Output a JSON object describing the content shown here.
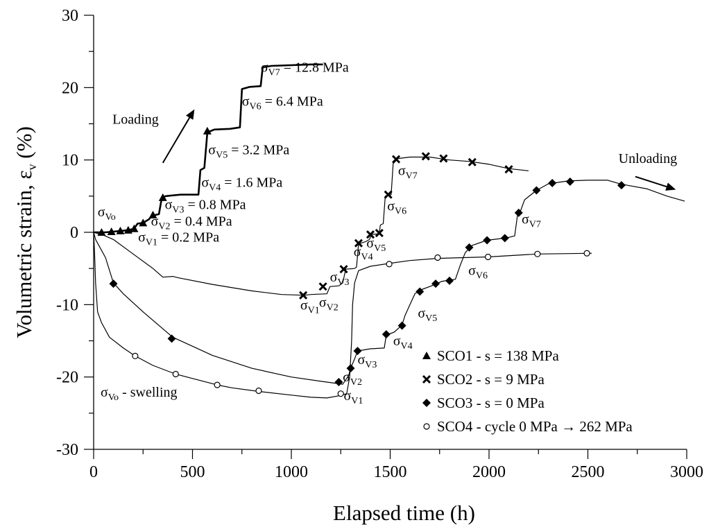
{
  "chart_data": {
    "type": "line",
    "xlabel": "Elapsed time (h)",
    "ylabel": "Volumetric strain, ε",
    "ylabel_sub": "v",
    "ylabel_unit": " (%)",
    "xlim": [
      0,
      3000
    ],
    "ylim": [
      -30,
      30
    ],
    "xticks": [
      0,
      500,
      1000,
      1500,
      2000,
      2500,
      3000
    ],
    "yticks": [
      -30,
      -20,
      -10,
      0,
      10,
      20,
      30
    ],
    "grid": false,
    "legend_position": "bottom-right",
    "series": [
      {
        "name": "SCO1 - s = 138 MPa",
        "marker": "triangle",
        "line": [
          [
            0,
            0
          ],
          [
            60,
            0
          ],
          [
            100,
            0.1
          ],
          [
            140,
            0.2
          ],
          [
            175,
            0.3
          ],
          [
            205,
            0.5
          ],
          [
            222,
            1.2
          ],
          [
            250,
            1.3
          ],
          [
            280,
            1.8
          ],
          [
            295,
            2.3
          ],
          [
            330,
            2.5
          ],
          [
            345,
            4.8
          ],
          [
            365,
            5.0
          ],
          [
            440,
            5.2
          ],
          [
            530,
            5.2
          ],
          [
            540,
            8.6
          ],
          [
            560,
            8.9
          ],
          [
            575,
            13.8
          ],
          [
            610,
            14.2
          ],
          [
            690,
            14.3
          ],
          [
            740,
            14.5
          ],
          [
            750,
            19.8
          ],
          [
            790,
            20.1
          ],
          [
            845,
            20.2
          ],
          [
            855,
            22.8
          ],
          [
            900,
            23.0
          ],
          [
            1000,
            23.1
          ],
          [
            1100,
            23.2
          ],
          [
            1160,
            23.2
          ]
        ],
        "markers": [
          [
            40,
            0
          ],
          [
            90,
            0.1
          ],
          [
            135,
            0.2
          ],
          [
            175,
            0.3
          ],
          [
            205,
            0.5
          ],
          [
            250,
            1.3
          ],
          [
            300,
            2.4
          ],
          [
            350,
            4.8
          ],
          [
            575,
            14.0
          ]
        ]
      },
      {
        "name": "SCO2 - s = 9 MPa",
        "marker": "x",
        "line": [
          [
            0,
            0
          ],
          [
            50,
            -0.4
          ],
          [
            100,
            -1
          ],
          [
            200,
            -3
          ],
          [
            300,
            -5
          ],
          [
            350,
            -6.2
          ],
          [
            400,
            -6.1
          ],
          [
            430,
            -6.3
          ],
          [
            600,
            -7.2
          ],
          [
            800,
            -8.1
          ],
          [
            950,
            -8.6
          ],
          [
            1065,
            -8.7
          ],
          [
            1100,
            -8.6
          ],
          [
            1180,
            -8.5
          ],
          [
            1195,
            -7.5
          ],
          [
            1240,
            -7.4
          ],
          [
            1260,
            -7.0
          ],
          [
            1275,
            -5.1
          ],
          [
            1320,
            -5.0
          ],
          [
            1330,
            -4.8
          ],
          [
            1340,
            -1.6
          ],
          [
            1375,
            -1.3
          ],
          [
            1395,
            -1.0
          ],
          [
            1405,
            -0.3
          ],
          [
            1445,
            -0.2
          ],
          [
            1450,
            1.0
          ],
          [
            1465,
            1.2
          ],
          [
            1475,
            5.0
          ],
          [
            1505,
            5.2
          ],
          [
            1515,
            9.5
          ],
          [
            1540,
            10.2
          ],
          [
            1600,
            10.4
          ],
          [
            1700,
            10.4
          ],
          [
            1800,
            10.0
          ],
          [
            1900,
            9.8
          ],
          [
            2000,
            9.4
          ],
          [
            2100,
            8.8
          ],
          [
            2200,
            8.5
          ]
        ],
        "markers": [
          [
            1060,
            -8.7
          ],
          [
            1160,
            -7.5
          ],
          [
            1265,
            -5.1
          ],
          [
            1340,
            -1.5
          ],
          [
            1400,
            -0.3
          ],
          [
            1445,
            -0.1
          ],
          [
            1490,
            5.2
          ],
          [
            1530,
            10.1
          ],
          [
            1680,
            10.5
          ],
          [
            1770,
            10.2
          ],
          [
            1915,
            9.7
          ],
          [
            2100,
            8.7
          ]
        ]
      },
      {
        "name": "SCO3 - s = 0 MPa",
        "marker": "diamond",
        "line": [
          [
            0,
            0
          ],
          [
            10,
            -1
          ],
          [
            30,
            -2
          ],
          [
            60,
            -3.5
          ],
          [
            100,
            -7
          ],
          [
            150,
            -8.5
          ],
          [
            250,
            -11
          ],
          [
            400,
            -14.5
          ],
          [
            600,
            -17
          ],
          [
            800,
            -18.8
          ],
          [
            1000,
            -20
          ],
          [
            1150,
            -20.6
          ],
          [
            1260,
            -21
          ],
          [
            1290,
            -19.8
          ],
          [
            1300,
            -18.8
          ],
          [
            1320,
            -17.5
          ],
          [
            1335,
            -16.4
          ],
          [
            1400,
            -16.1
          ],
          [
            1470,
            -16.0
          ],
          [
            1480,
            -14.2
          ],
          [
            1520,
            -13.8
          ],
          [
            1545,
            -13.2
          ],
          [
            1560,
            -12.8
          ],
          [
            1575,
            -11.5
          ],
          [
            1600,
            -10.0
          ],
          [
            1625,
            -8.5
          ],
          [
            1650,
            -8.0
          ],
          [
            1710,
            -7.4
          ],
          [
            1760,
            -6.8
          ],
          [
            1800,
            -6.6
          ],
          [
            1830,
            -6.5
          ],
          [
            1855,
            -4.5
          ],
          [
            1880,
            -2.8
          ],
          [
            1915,
            -1.8
          ],
          [
            1990,
            -1.1
          ],
          [
            2050,
            -0.9
          ],
          [
            2100,
            -0.7
          ],
          [
            2130,
            -0.5
          ],
          [
            2145,
            2.6
          ],
          [
            2160,
            3.0
          ],
          [
            2180,
            4.5
          ],
          [
            2240,
            5.8
          ],
          [
            2300,
            6.7
          ],
          [
            2400,
            7.1
          ],
          [
            2500,
            7.2
          ],
          [
            2600,
            7.2
          ],
          [
            2650,
            6.8
          ],
          [
            2700,
            6.5
          ],
          [
            2800,
            6.0
          ],
          [
            2900,
            5.0
          ],
          [
            2990,
            4.3
          ]
        ],
        "markers": [
          [
            100,
            -7.1
          ],
          [
            395,
            -14.7
          ],
          [
            1240,
            -20.7
          ],
          [
            1300,
            -18.8
          ],
          [
            1335,
            -16.4
          ],
          [
            1480,
            -14.1
          ],
          [
            1560,
            -12.9
          ],
          [
            1650,
            -8.2
          ],
          [
            1730,
            -7.1
          ],
          [
            1800,
            -6.7
          ],
          [
            1900,
            -2.1
          ],
          [
            1990,
            -1.1
          ],
          [
            2080,
            -0.8
          ],
          [
            2150,
            2.7
          ],
          [
            2240,
            5.8
          ],
          [
            2320,
            6.8
          ],
          [
            2410,
            7.0
          ],
          [
            2670,
            6.5
          ]
        ]
      },
      {
        "name": "SCO4 - cycle 0 MPa → 262 MPa",
        "marker": "open-circle",
        "line": [
          [
            0,
            0
          ],
          [
            5,
            -3
          ],
          [
            10,
            -7
          ],
          [
            20,
            -11
          ],
          [
            40,
            -12.5
          ],
          [
            80,
            -14.5
          ],
          [
            150,
            -16
          ],
          [
            210,
            -17.1
          ],
          [
            300,
            -18.4
          ],
          [
            415,
            -19.6
          ],
          [
            500,
            -20.2
          ],
          [
            625,
            -21.1
          ],
          [
            700,
            -21.5
          ],
          [
            835,
            -22.0
          ],
          [
            1000,
            -22.5
          ],
          [
            1100,
            -22.8
          ],
          [
            1180,
            -22.9
          ],
          [
            1240,
            -22.6
          ],
          [
            1280,
            -22.3
          ],
          [
            1295,
            -20
          ],
          [
            1305,
            -15
          ],
          [
            1310,
            -10
          ],
          [
            1320,
            -7
          ],
          [
            1340,
            -5.3
          ],
          [
            1400,
            -4.7
          ],
          [
            1495,
            -4.3
          ],
          [
            1600,
            -3.9
          ],
          [
            1740,
            -3.6
          ],
          [
            1995,
            -3.4
          ],
          [
            2245,
            -3.0
          ],
          [
            2500,
            -2.9
          ],
          [
            2520,
            -2.9
          ]
        ],
        "markers": [
          [
            210,
            -17.1
          ],
          [
            415,
            -19.6
          ],
          [
            625,
            -21.1
          ],
          [
            835,
            -21.9
          ],
          [
            1250,
            -22.3
          ],
          [
            1495,
            -4.4
          ],
          [
            1740,
            -3.5
          ],
          [
            1995,
            -3.4
          ],
          [
            2245,
            -3.0
          ],
          [
            2495,
            -2.9
          ]
        ]
      }
    ],
    "legend": [
      {
        "marker": "triangle",
        "text": "SCO1 - s = 138 MPa"
      },
      {
        "marker": "x",
        "text": "SCO2 - s = 9 MPa"
      },
      {
        "marker": "diamond",
        "text": "SCO3 - s = 0 MPa"
      },
      {
        "marker": "open-circle",
        "text": "SCO4 - cycle 0 MPa → 262 MPa"
      }
    ],
    "annotations": [
      {
        "x": 845,
        "y": 22.2,
        "parts": [
          [
            "σ",
            ""
          ],
          [
            "V7",
            "sub"
          ],
          [
            " = 12.8 MPa",
            ""
          ]
        ]
      },
      {
        "x": 750,
        "y": 17.5,
        "parts": [
          [
            "σ",
            ""
          ],
          [
            "V6",
            "sub"
          ],
          [
            " = 6.4 MPa",
            ""
          ]
        ]
      },
      {
        "x": 580,
        "y": 10.8,
        "parts": [
          [
            "σ",
            ""
          ],
          [
            "V5",
            "sub"
          ],
          [
            " = 3.2 MPa",
            ""
          ]
        ]
      },
      {
        "x": 545,
        "y": 6.3,
        "parts": [
          [
            "σ",
            ""
          ],
          [
            "V4",
            "sub"
          ],
          [
            " = 1.6 MPa",
            ""
          ]
        ]
      },
      {
        "x": 360,
        "y": 3.2,
        "parts": [
          [
            "σ",
            ""
          ],
          [
            "V3",
            "sub"
          ],
          [
            " = 0.8 MPa",
            ""
          ]
        ]
      },
      {
        "x": 290,
        "y": 0.9,
        "parts": [
          [
            "σ",
            ""
          ],
          [
            "V2",
            "sub"
          ],
          [
            " = 0.4 MPa",
            ""
          ]
        ]
      },
      {
        "x": 225,
        "y": -1.3,
        "parts": [
          [
            "σ",
            ""
          ],
          [
            "V1",
            "sub"
          ],
          [
            " = 0.2 MPa",
            ""
          ]
        ]
      },
      {
        "x": 20,
        "y": 2.2,
        "parts": [
          [
            "σ",
            ""
          ],
          [
            "Vo",
            "sub"
          ]
        ]
      },
      {
        "x": 35,
        "y": -22.7,
        "parts": [
          [
            "σ",
            ""
          ],
          [
            "Vo",
            "sub"
          ],
          [
            " - swelling",
            ""
          ]
        ]
      },
      {
        "x": 1045,
        "y": -10.7,
        "parts": [
          [
            "σ",
            ""
          ],
          [
            "V1",
            "sub"
          ]
        ]
      },
      {
        "x": 1140,
        "y": -10.3,
        "parts": [
          [
            "σ",
            ""
          ],
          [
            "V2",
            "sub"
          ]
        ]
      },
      {
        "x": 1195,
        "y": -6.8,
        "parts": [
          [
            "σ",
            ""
          ],
          [
            "V3",
            "sub"
          ]
        ]
      },
      {
        "x": 1315,
        "y": -3.3,
        "parts": [
          [
            "σ",
            ""
          ],
          [
            "V4",
            "sub"
          ]
        ]
      },
      {
        "x": 1380,
        "y": -2.1,
        "parts": [
          [
            "σ",
            ""
          ],
          [
            "V5",
            "sub"
          ]
        ]
      },
      {
        "x": 1485,
        "y": 3.0,
        "parts": [
          [
            "σ",
            ""
          ],
          [
            "V6",
            "sub"
          ]
        ]
      },
      {
        "x": 1540,
        "y": 7.9,
        "parts": [
          [
            "σ",
            ""
          ],
          [
            "V7",
            "sub"
          ]
        ]
      },
      {
        "x": 1265,
        "y": -23.2,
        "parts": [
          [
            "σ",
            ""
          ],
          [
            "V1",
            "sub"
          ]
        ]
      },
      {
        "x": 1260,
        "y": -20.6,
        "parts": [
          [
            "σ",
            ""
          ],
          [
            "V2",
            "sub"
          ]
        ]
      },
      {
        "x": 1335,
        "y": -18.2,
        "parts": [
          [
            "σ",
            ""
          ],
          [
            "V3",
            "sub"
          ]
        ]
      },
      {
        "x": 1515,
        "y": -15.6,
        "parts": [
          [
            "σ",
            ""
          ],
          [
            "V4",
            "sub"
          ]
        ]
      },
      {
        "x": 1640,
        "y": -11.8,
        "parts": [
          [
            "σ",
            ""
          ],
          [
            "V5",
            "sub"
          ]
        ]
      },
      {
        "x": 1895,
        "y": -5.9,
        "parts": [
          [
            "σ",
            ""
          ],
          [
            "V6",
            "sub"
          ]
        ]
      },
      {
        "x": 2165,
        "y": 1.2,
        "parts": [
          [
            "σ",
            ""
          ],
          [
            "V7",
            "sub"
          ]
        ]
      },
      {
        "x": 95,
        "y": 15.0,
        "parts": [
          [
            "Loading",
            ""
          ]
        ]
      },
      {
        "x": 2655,
        "y": 9.6,
        "parts": [
          [
            "Unloading",
            ""
          ]
        ]
      }
    ],
    "arrows": [
      {
        "from": [
          350,
          9.6
        ],
        "to": [
          510,
          17.0
        ]
      },
      {
        "from": [
          2740,
          7.7
        ],
        "to": [
          2945,
          5.9
        ]
      }
    ]
  }
}
